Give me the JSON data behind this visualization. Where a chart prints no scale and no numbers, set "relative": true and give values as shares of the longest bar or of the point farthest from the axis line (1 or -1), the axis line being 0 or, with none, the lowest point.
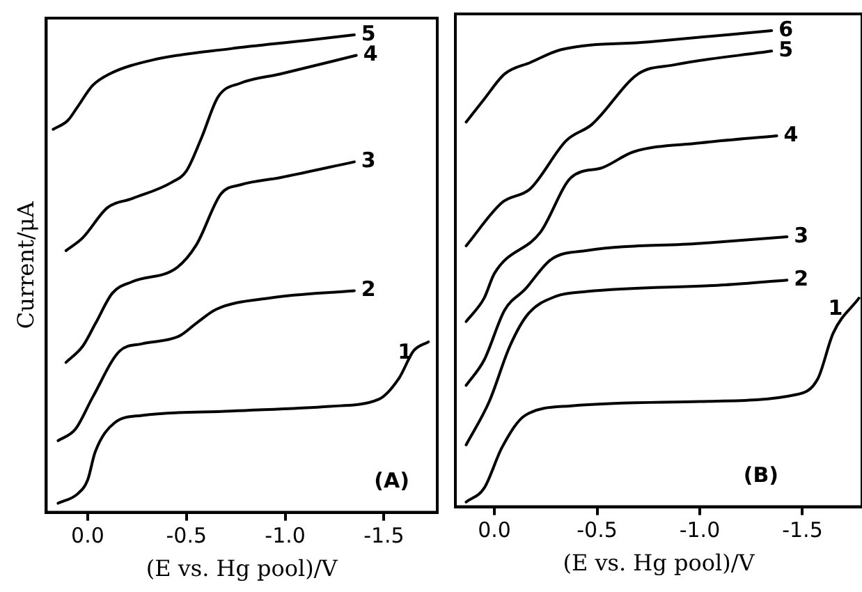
{
  "chart_data": [
    {
      "type": "line",
      "relative": true,
      "ylabel": "Current/μA",
      "xlabel": "(E vs. Hg pool)/V",
      "xlim": [
        0.21,
        -1.77
      ],
      "xticks": [
        {
          "value": 0,
          "label": "0.0"
        },
        {
          "value": -0.5,
          "label": "-0.5"
        },
        {
          "value": -1.0,
          "label": "-1.0"
        },
        {
          "value": -1.5,
          "label": "-1.5"
        }
      ],
      "grid": false,
      "legend": false,
      "marker": "none",
      "line_style": "solid",
      "annotations": [
        "(A)"
      ],
      "series": [
        {
          "name": "1",
          "color": "#000000",
          "x": [
            0.15,
            0.05,
            0,
            -0.0375,
            -0.1375,
            -0.275,
            -0.725,
            -1.225,
            -1.475,
            -1.575,
            -1.65,
            -1.725
          ],
          "values": [
            0.019,
            0.039,
            0.068,
            0.126,
            0.188,
            0.203,
            0.212,
            0.222,
            0.237,
            0.28,
            0.338,
            0.357
          ]
        },
        {
          "name": "2",
          "color": "#000000",
          "x": [
            0.15,
            0.0625,
            -0.025,
            -0.1625,
            -0.275,
            -0.4625,
            -0.55,
            -0.65,
            -0.925,
            -1.35
          ],
          "values": [
            0.15,
            0.174,
            0.241,
            0.338,
            0.353,
            0.369,
            0.396,
            0.425,
            0.449,
            0.464
          ]
        },
        {
          "name": "3",
          "color": "#000000",
          "x": [
            0.11,
            0.025,
            -0.04,
            -0.125,
            -0.225,
            -0.45,
            -0.55,
            -0.675,
            -0.775,
            -0.975,
            -1.35
          ],
          "values": [
            0.314,
            0.348,
            0.396,
            0.459,
            0.483,
            0.512,
            0.56,
            0.667,
            0.686,
            0.701,
            0.734
          ]
        },
        {
          "name": "4",
          "color": "#000000",
          "x": [
            0.11,
            0.025,
            -0.1,
            -0.225,
            -0.425,
            -0.5,
            -0.575,
            -0.66,
            -0.775,
            -0.975,
            -1.36
          ],
          "values": [
            0.548,
            0.575,
            0.638,
            0.657,
            0.691,
            0.715,
            0.783,
            0.87,
            0.899,
            0.918,
            0.957
          ]
        },
        {
          "name": "5",
          "color": "#000000",
          "x": [
            0.175,
            0.1,
            0.05,
            -0.025,
            -0.11,
            -0.325,
            -0.725,
            -1.1,
            -1.35
          ],
          "values": [
            0.802,
            0.821,
            0.85,
            0.894,
            0.918,
            0.947,
            0.971,
            0.988,
            1.0
          ]
        }
      ]
    },
    {
      "type": "line",
      "relative": true,
      "xlabel": "(E vs. Hg pool)/V",
      "xlim": [
        0.19,
        -1.79
      ],
      "xticks": [
        {
          "value": 0,
          "label": "0.0"
        },
        {
          "value": -0.5,
          "label": "-0.5"
        },
        {
          "value": -1.0,
          "label": "-1.0"
        },
        {
          "value": -1.5,
          "label": "-1.5"
        }
      ],
      "grid": false,
      "legend": false,
      "marker": "none",
      "line_style": "solid",
      "annotations": [
        "(B)"
      ],
      "series": [
        {
          "name": "1",
          "color": "#000000",
          "x": [
            0.1375,
            0.05,
            -0.0375,
            -0.15,
            -0.375,
            -1.0,
            -1.475,
            -1.575,
            -1.65,
            -1.775
          ],
          "values": [
            0.01,
            0.039,
            0.125,
            0.192,
            0.212,
            0.221,
            0.236,
            0.269,
            0.365,
            0.438
          ]
        },
        {
          "name": "2",
          "color": "#000000",
          "x": [
            0.1375,
            0.025,
            -0.075,
            -0.1625,
            -0.3,
            -0.45,
            -1.125,
            -1.425
          ],
          "values": [
            0.13,
            0.221,
            0.337,
            0.404,
            0.442,
            0.452,
            0.466,
            0.476
          ]
        },
        {
          "name": "3",
          "color": "#000000",
          "x": [
            0.1375,
            0.05,
            -0.05,
            -0.15,
            -0.275,
            -0.45,
            -1.0,
            -1.425
          ],
          "values": [
            0.255,
            0.308,
            0.413,
            0.457,
            0.519,
            0.538,
            0.553,
            0.567
          ]
        },
        {
          "name": "4",
          "color": "#000000",
          "x": [
            0.1375,
            0.05,
            0,
            -0.225,
            -0.375,
            -0.525,
            -0.675,
            -1.0,
            -1.375
          ],
          "values": [
            0.389,
            0.438,
            0.49,
            0.577,
            0.692,
            0.712,
            0.745,
            0.764,
            0.779
          ]
        },
        {
          "name": "5",
          "color": "#000000",
          "x": [
            0.1375,
            -0.0375,
            -0.175,
            -0.35,
            -0.475,
            -0.7,
            -0.875,
            -1.35
          ],
          "values": [
            0.548,
            0.639,
            0.668,
            0.769,
            0.803,
            0.909,
            0.928,
            0.957
          ]
        },
        {
          "name": "6",
          "color": "#000000",
          "x": [
            0.1375,
            0.05,
            -0.05,
            -0.175,
            -0.325,
            -0.75,
            -1.35
          ],
          "values": [
            0.808,
            0.856,
            0.909,
            0.933,
            0.96,
            0.976,
            1.0
          ]
        }
      ]
    }
  ]
}
